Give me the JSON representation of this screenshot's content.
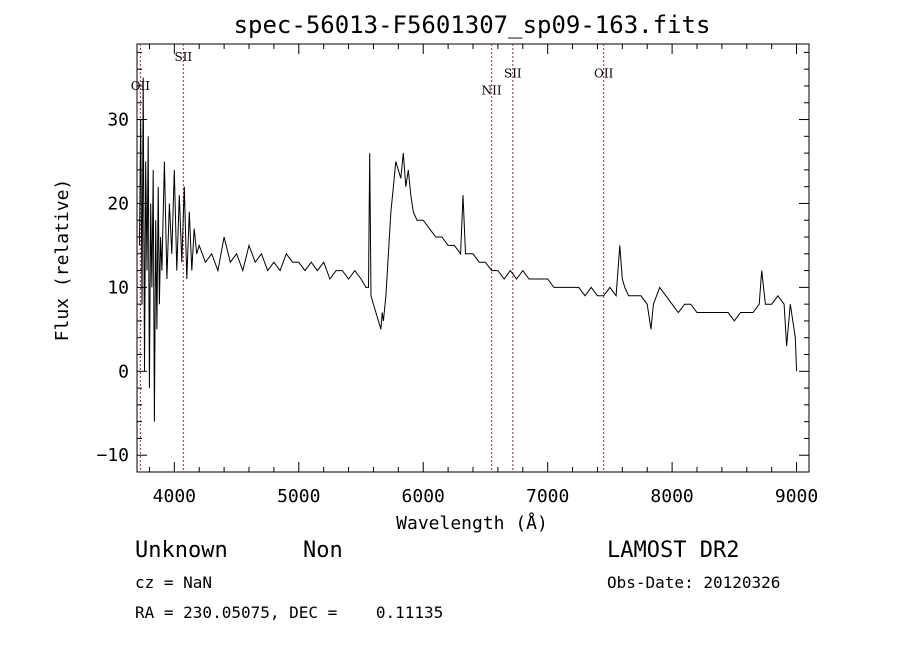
{
  "chart_data": {
    "type": "line",
    "title": "spec-56013-F5601307_sp09-163.fits",
    "xlabel": "Wavelength (Å)",
    "ylabel": "Flux (relative)",
    "xlim": [
      3700,
      9100
    ],
    "ylim": [
      -12,
      39
    ],
    "x_ticks": [
      4000,
      5000,
      6000,
      7000,
      8000,
      9000
    ],
    "y_ticks": [
      -10,
      0,
      10,
      20,
      30
    ],
    "grid": false,
    "legend": "none",
    "line_color": "#000000",
    "marker_color": "#b22222",
    "series": [
      {
        "x": [
          3720,
          3730,
          3740,
          3750,
          3760,
          3770,
          3780,
          3790,
          3800,
          3810,
          3820,
          3830,
          3840,
          3850,
          3860,
          3870,
          3880,
          3890,
          3900,
          3920,
          3940,
          3960,
          3980,
          4000,
          4020,
          4040,
          4060,
          4080,
          4100,
          4120,
          4140,
          4160,
          4180,
          4200,
          4250,
          4300,
          4350,
          4400,
          4450,
          4500,
          4550,
          4600,
          4650,
          4700,
          4750,
          4800,
          4850,
          4900,
          4950,
          5000,
          5050,
          5100,
          5150,
          5200,
          5250,
          5300,
          5350,
          5400,
          5450,
          5500,
          5540,
          5560,
          5570,
          5580,
          5600,
          5620,
          5640,
          5660,
          5670,
          5680,
          5700,
          5720,
          5740,
          5760,
          5780,
          5800,
          5820,
          5840,
          5860,
          5880,
          5900,
          5920,
          5950,
          6000,
          6050,
          6100,
          6150,
          6200,
          6250,
          6300,
          6320,
          6340,
          6350,
          6400,
          6450,
          6500,
          6550,
          6600,
          6650,
          6700,
          6750,
          6800,
          6850,
          6900,
          6950,
          7000,
          7050,
          7100,
          7150,
          7200,
          7250,
          7300,
          7350,
          7400,
          7450,
          7500,
          7550,
          7580,
          7600,
          7620,
          7650,
          7700,
          7750,
          7800,
          7830,
          7850,
          7900,
          7950,
          8000,
          8050,
          8100,
          8150,
          8200,
          8250,
          8300,
          8350,
          8400,
          8450,
          8500,
          8550,
          8600,
          8650,
          8700,
          8720,
          8750,
          8800,
          8850,
          8900,
          8920,
          8950,
          8970,
          8990,
          9000
        ],
        "y": [
          15,
          30,
          8,
          35,
          0,
          25,
          12,
          28,
          -2,
          20,
          10,
          24,
          -6,
          18,
          5,
          22,
          8,
          16,
          12,
          25,
          11,
          20,
          14,
          24,
          12,
          21,
          13,
          22,
          11,
          19,
          12,
          17,
          14,
          15,
          13,
          14,
          12,
          16,
          13,
          14,
          12,
          15,
          13,
          14,
          12,
          13,
          12,
          14,
          13,
          13,
          12,
          13,
          12,
          13,
          11,
          12,
          12,
          11,
          12,
          11,
          10,
          10,
          26,
          9,
          8,
          7,
          6,
          5,
          7,
          6,
          9,
          14,
          19,
          22,
          25,
          24,
          23,
          26,
          22,
          24,
          21,
          19,
          18,
          18,
          17,
          16,
          16,
          15,
          15,
          14,
          21,
          14,
          14,
          14,
          13,
          13,
          12,
          12,
          11,
          12,
          11,
          12,
          11,
          11,
          11,
          11,
          10,
          10,
          10,
          10,
          10,
          9,
          10,
          9,
          9,
          10,
          9,
          15,
          11,
          10,
          9,
          9,
          9,
          8,
          5,
          8,
          10,
          9,
          8,
          7,
          8,
          8,
          7,
          7,
          7,
          7,
          7,
          7,
          6,
          7,
          7,
          7,
          8,
          12,
          8,
          8,
          9,
          8,
          3,
          8,
          6,
          4,
          0
        ]
      }
    ],
    "line_markers": [
      {
        "label": "OII",
        "x": 3727,
        "label_y": 33.5
      },
      {
        "label": "SII",
        "x": 4072,
        "label_y": 37
      },
      {
        "label": "NII",
        "x": 6550,
        "label_y": 33
      },
      {
        "label": "SII",
        "x": 6720,
        "label_y": 35
      },
      {
        "label": "OII",
        "x": 7450,
        "label_y": 35
      }
    ]
  },
  "info": {
    "class": "Unknown",
    "subclass": "Non",
    "cz": "cz = NaN",
    "coords": "RA = 230.05075, DEC =    0.11135",
    "survey": "LAMOST DR2",
    "obs_date": "Obs-Date: 20120326"
  }
}
